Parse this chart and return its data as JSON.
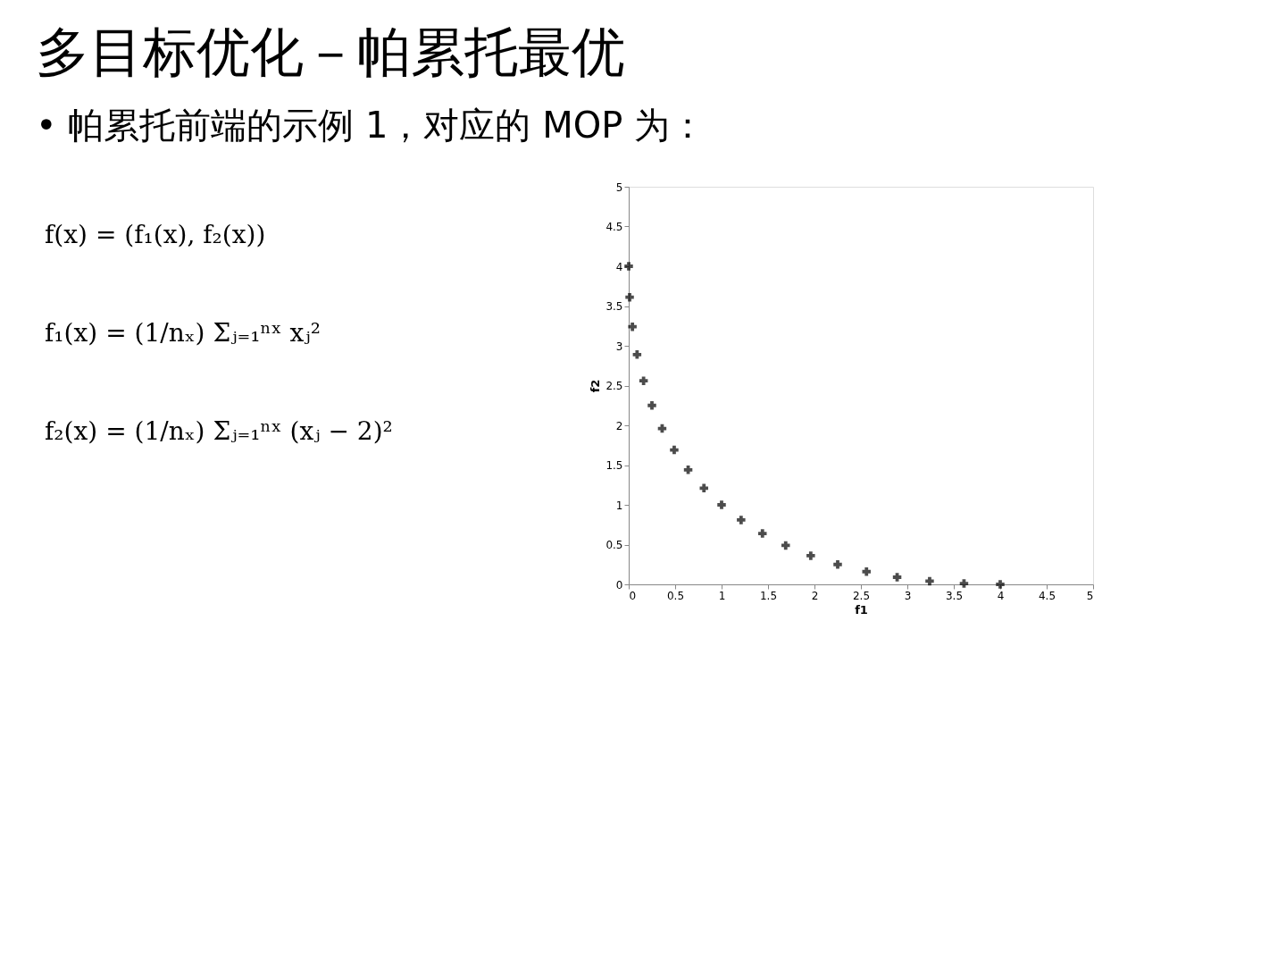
{
  "chart_data": {
    "type": "scatter",
    "title": "多目标优化－帕累托最优",
    "subtitle": "• 帕累托前端的示例 1，对应的 MOP 为：",
    "xlabel": "f1",
    "ylabel": "f2",
    "annotations": [
      "f(x)  =  (f₁(x), f₂(x))",
      "f₁(x)  =  (1/nₓ) Σⱼ₌₁ⁿˣ xⱼ²",
      "f₂(x)  =  (1/nₓ) Σⱼ₌₁ⁿˣ (xⱼ − 2)²"
    ],
    "x": [
      0,
      0.01,
      0.04,
      0.09,
      0.16,
      0.25,
      0.36,
      0.49,
      0.64,
      0.81,
      1,
      1.21,
      1.44,
      1.69,
      1.96,
      2.25,
      2.56,
      2.89,
      3.24,
      3.61,
      4
    ],
    "series": [
      {
        "color": "#000000",
        "values": [
          4,
          3.61,
          3.24,
          2.89,
          2.56,
          2.25,
          1.96,
          1.69,
          1.44,
          1.21,
          1,
          0.81,
          0.64,
          0.49,
          0.36,
          0.25,
          0.16,
          0.09,
          0.04,
          0.01,
          0
        ]
      }
    ],
    "xlim": [
      0,
      5
    ],
    "ylim": [
      0,
      5
    ],
    "xticks": [
      0,
      0.5,
      1,
      1.5,
      2,
      2.5,
      3,
      3.5,
      4,
      4.5,
      5
    ],
    "yticks": [
      0,
      0.5,
      1,
      1.5,
      2,
      2.5,
      3,
      3.5,
      4,
      4.5,
      5
    ],
    "marker": "cross",
    "grid": false
  }
}
